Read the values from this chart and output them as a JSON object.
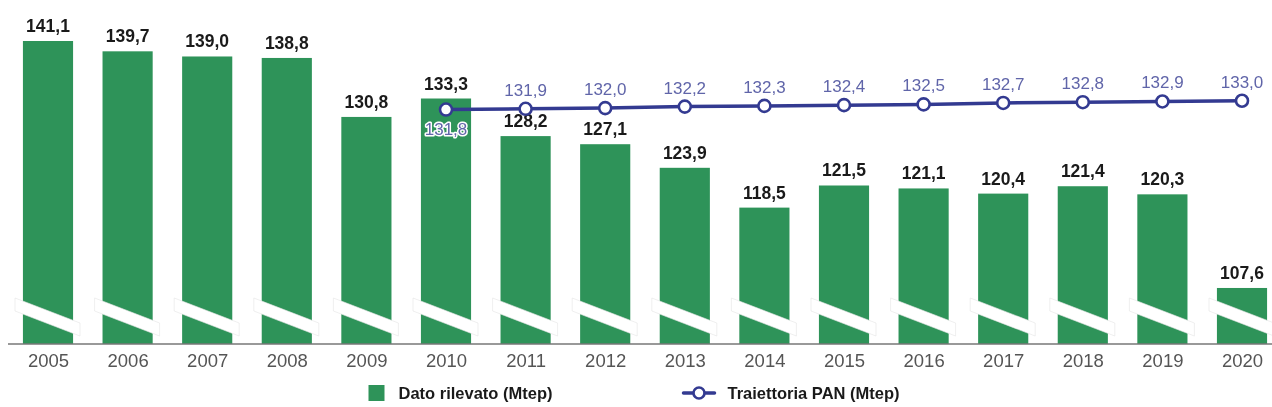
{
  "chart_data": {
    "type": "bar",
    "categories": [
      "2005",
      "2006",
      "2007",
      "2008",
      "2009",
      "2010",
      "2011",
      "2012",
      "2013",
      "2014",
      "2015",
      "2016",
      "2017",
      "2018",
      "2019",
      "2020"
    ],
    "ylim": [
      100,
      141.1
    ],
    "tick_labels": "x",
    "legend": "bottom",
    "series": [
      {
        "name": "Dato rilevato (Mtep)",
        "color": "#2e9359",
        "values": [
          141.1,
          139.7,
          139.0,
          138.8,
          130.8,
          133.3,
          128.2,
          127.1,
          123.9,
          118.5,
          121.5,
          121.1,
          120.4,
          121.4,
          120.3,
          107.6
        ],
        "value_labels": [
          "141,1",
          "139,7",
          "139,0",
          "138,8",
          "130,8",
          "133,3",
          "128,2",
          "127,1",
          "123,9",
          "118,5",
          "121,5",
          "121,1",
          "120,4",
          "121,4",
          "120,3",
          "107,6"
        ]
      },
      {
        "name": "Traiettoria PAN (Mtep)",
        "type": "line",
        "color": "#333a91",
        "marker": "circle",
        "values": [
          null,
          null,
          null,
          null,
          null,
          131.8,
          131.9,
          132.0,
          132.2,
          132.3,
          132.4,
          132.5,
          132.7,
          132.8,
          132.9,
          133.0
        ],
        "value_labels": [
          null,
          null,
          null,
          null,
          null,
          "131,8",
          "131,9",
          "132,0",
          "132,2",
          "132,3",
          "132,4",
          "132,5",
          "132,7",
          "132,8",
          "132,9",
          "133,0"
        ]
      }
    ]
  }
}
